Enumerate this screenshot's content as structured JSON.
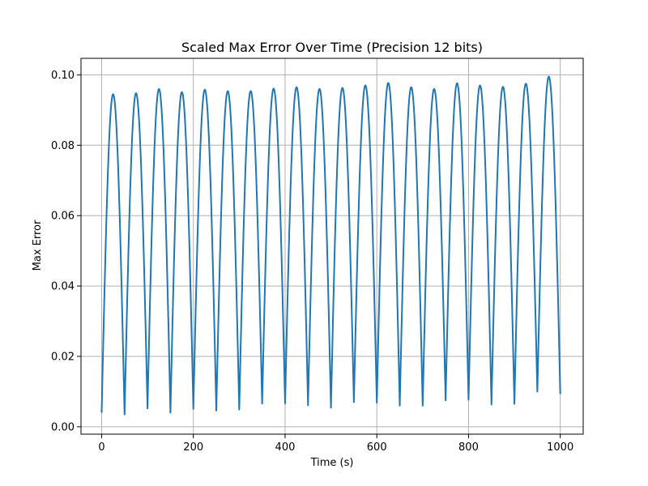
{
  "chart_data": {
    "type": "line",
    "title": "Scaled Max Error Over Time (Precision 12 bits)",
    "xlabel": "Time (s)",
    "ylabel": "Max Error",
    "xlim": [
      -45,
      1050
    ],
    "ylim": [
      -0.0021,
      0.1047
    ],
    "x_ticks": [
      0,
      200,
      400,
      600,
      800,
      1000
    ],
    "x_tick_labels": [
      "0",
      "200",
      "400",
      "600",
      "800",
      "1000"
    ],
    "y_ticks": [
      0.0,
      0.02,
      0.04,
      0.06,
      0.08,
      0.1
    ],
    "y_tick_labels": [
      "0.00",
      "0.02",
      "0.04",
      "0.06",
      "0.08",
      "0.10"
    ],
    "grid": true,
    "legend": "none",
    "colors": {
      "line": "#1f77b4",
      "grid": "#b0b0b0",
      "axes": "#000000"
    },
    "series": [
      {
        "period": 50,
        "points_per_period": 60,
        "cycles": [
          {
            "start": 0,
            "valley": 0.004,
            "peak": 0.0945
          },
          {
            "start": 50,
            "valley": 0.0035,
            "peak": 0.0948
          },
          {
            "start": 100,
            "valley": 0.0052,
            "peak": 0.096
          },
          {
            "start": 150,
            "valley": 0.004,
            "peak": 0.0951
          },
          {
            "start": 200,
            "valley": 0.0051,
            "peak": 0.0958
          },
          {
            "start": 250,
            "valley": 0.0046,
            "peak": 0.0954
          },
          {
            "start": 300,
            "valley": 0.0049,
            "peak": 0.0954
          },
          {
            "start": 350,
            "valley": 0.0066,
            "peak": 0.0961
          },
          {
            "start": 400,
            "valley": 0.0066,
            "peak": 0.0965
          },
          {
            "start": 450,
            "valley": 0.0061,
            "peak": 0.096
          },
          {
            "start": 500,
            "valley": 0.0054,
            "peak": 0.0963
          },
          {
            "start": 550,
            "valley": 0.007,
            "peak": 0.097
          },
          {
            "start": 600,
            "valley": 0.0068,
            "peak": 0.0977
          },
          {
            "start": 650,
            "valley": 0.006,
            "peak": 0.0965
          },
          {
            "start": 700,
            "valley": 0.006,
            "peak": 0.096
          },
          {
            "start": 750,
            "valley": 0.0075,
            "peak": 0.0976
          },
          {
            "start": 800,
            "valley": 0.0077,
            "peak": 0.097
          },
          {
            "start": 850,
            "valley": 0.0063,
            "peak": 0.0966
          },
          {
            "start": 900,
            "valley": 0.0065,
            "peak": 0.0975
          },
          {
            "start": 950,
            "valley": 0.01,
            "peak": 0.0995
          }
        ],
        "end": {
          "x": 1000,
          "y": 0.0093
        }
      }
    ]
  }
}
